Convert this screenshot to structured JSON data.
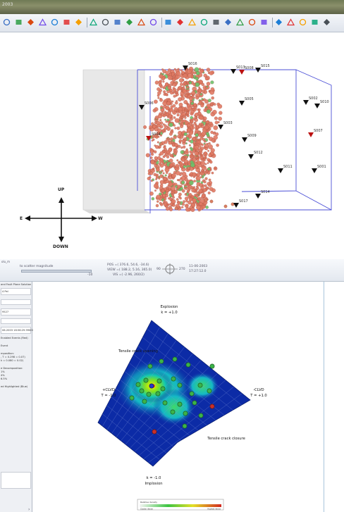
{
  "window": {
    "title": "2003"
  },
  "toolbar": {
    "icons": [
      "undo-icon",
      "rotate-icon",
      "rotate-icon",
      "view-icon",
      "view-icon",
      "view-icon",
      "target-icon",
      "list-icon",
      "filter-icon",
      "color-bars-icon",
      "grid-icon",
      "palette-icon",
      "image-icon",
      "pen-icon",
      "eraser-icon",
      "box-icon",
      "layers-icon",
      "arrow-icon",
      "move-icon",
      "zoom-icon",
      "arrows-icon",
      "chart-icon",
      "cross-icon",
      "station-icon",
      "antenna-icon",
      "histogram-icon",
      "funnel-icon"
    ]
  },
  "scene3d": {
    "orientation": {
      "up": "UP",
      "down": "DOWN",
      "east": "E",
      "west": "W"
    },
    "stations": [
      "S016",
      "S013",
      "S008",
      "S015",
      "S005",
      "S006",
      "S003",
      "S004",
      "S009",
      "S002",
      "S010",
      "S007",
      "S012",
      "S011",
      "S001",
      "S014",
      "S017"
    ],
    "colors": {
      "cube_face": "#e6e6e6",
      "box_outline": "#4b4fd6",
      "event_main": "#e07a63",
      "event_alt": "#6cc36b"
    }
  },
  "status": {
    "pos": "POS =( 376.6,  54.6,  -34.6)",
    "view": "VIEW =( 188.2, 5.16, 365.0)",
    "view2": "VIS =( -2.96, 260/2)",
    "compass_left": "90",
    "compass_right": "270",
    "date": "11-06-2003",
    "time": "17:27:12.0",
    "slider_label": "to scatter magnitude",
    "slider_min": "-10"
  },
  "left_panel": {
    "header": "and Fault Plane Solution",
    "fields": [
      "4 Pel",
      "9527",
      "06-2003  18:56:29.99000"
    ],
    "notes": [
      "Enabled Events (Red)",
      "Event",
      "mposition:",
      ", T = 0.298 =  0.07)",
      "k = 0.080 =  0.02)",
      "e Decomposition:",
      "1%",
      "4%",
      "6.5%",
      "ed Highlighted (Blue)"
    ]
  },
  "moment_tensor": {
    "labels": {
      "explosion": "Explosion",
      "k_top": "k = +1.0",
      "tensile_opening": "Tensile crack opening",
      "clvd_left": "+CLVD",
      "t_left": "T = -1.0",
      "clvd_right": "-CLVD",
      "t_right": "T = +1.0",
      "tensile_closure": "Tensile crack closure",
      "k_bottom": "k = -1.0",
      "implosion": "Implosion"
    },
    "colorbar": {
      "title": "Relative density",
      "left": "Cluster dense",
      "right": "Highest dense"
    },
    "colors": {
      "background": "#0a2aa8",
      "hot": "#f2e600",
      "event": "#3bb34a",
      "event_red": "#c8302a"
    }
  }
}
